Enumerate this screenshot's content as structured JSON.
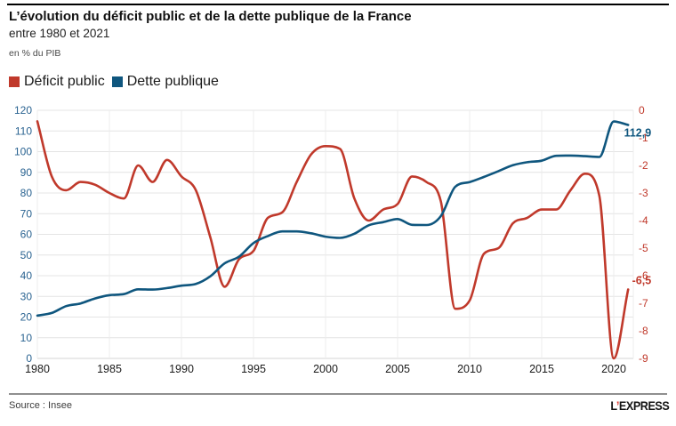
{
  "header": {
    "title": "L’évolution du déficit public et de la dette publique de la France",
    "subtitle": "entre 1980 et 2021",
    "unit": "en % du PIB"
  },
  "legend": [
    {
      "label": "Déficit public",
      "color": "#c0392b"
    },
    {
      "label": "Dette publique",
      "color": "#0f567e"
    }
  ],
  "footer": {
    "source": "Source : Insee",
    "brand": {
      "l": "L",
      "apostrophe": "’",
      "rest": "EXPRESS"
    }
  },
  "chart_data": {
    "type": "line",
    "title": "L’évolution du déficit public et de la dette publique de la France entre 1980 et 2021",
    "ylabel": "en % du PIB",
    "grid": true,
    "legend_position": "top",
    "x": [
      1980,
      1981,
      1982,
      1983,
      1984,
      1985,
      1986,
      1987,
      1988,
      1989,
      1990,
      1991,
      1992,
      1993,
      1994,
      1995,
      1996,
      1997,
      1998,
      1999,
      2000,
      2001,
      2002,
      2003,
      2004,
      2005,
      2006,
      2007,
      2008,
      2009,
      2010,
      2011,
      2012,
      2013,
      2014,
      2015,
      2016,
      2017,
      2018,
      2019,
      2020,
      2021
    ],
    "x_ticks": [
      1980,
      1985,
      1990,
      1995,
      2000,
      2005,
      2010,
      2015,
      2020
    ],
    "left_axis": {
      "min": 0,
      "max": 120,
      "step": 10,
      "label_color": "#2a6391"
    },
    "right_axis": {
      "min": -9,
      "max": 0,
      "step": 1,
      "label_color": "#c0392b"
    },
    "series": [
      {
        "name": "Déficit public",
        "axis": "right",
        "color": "#c0392b",
        "values": [
          -0.4,
          -2.4,
          -2.9,
          -2.6,
          -2.7,
          -3.0,
          -3.2,
          -2.0,
          -2.6,
          -1.8,
          -2.4,
          -2.9,
          -4.6,
          -6.4,
          -5.4,
          -5.1,
          -3.9,
          -3.7,
          -2.6,
          -1.6,
          -1.3,
          -1.4,
          -3.2,
          -4.0,
          -3.6,
          -3.4,
          -2.4,
          -2.6,
          -3.3,
          -7.2,
          -6.9,
          -5.2,
          -5.0,
          -4.1,
          -3.9,
          -3.6,
          -3.6,
          -2.9,
          -2.3,
          -3.1,
          -9.0,
          -6.5
        ]
      },
      {
        "name": "Dette publique",
        "axis": "left",
        "color": "#0f567e",
        "values": [
          20.7,
          22.0,
          25.3,
          26.6,
          29.0,
          30.6,
          31.1,
          33.4,
          33.3,
          34.0,
          35.2,
          36.0,
          39.7,
          46.0,
          49.2,
          55.8,
          59.2,
          61.4,
          61.4,
          60.5,
          58.9,
          58.3,
          60.3,
          64.4,
          65.9,
          67.4,
          64.6,
          64.5,
          68.8,
          83.0,
          85.3,
          87.8,
          90.6,
          93.4,
          94.9,
          95.6,
          98.0,
          98.1,
          97.8,
          97.4,
          114.6,
          112.9
        ]
      }
    ],
    "annotations": [
      {
        "text": "112,9",
        "series": "Dette publique",
        "color": "#0f567e"
      },
      {
        "text": "-6,5",
        "series": "Déficit public",
        "color": "#c0392b"
      }
    ]
  }
}
